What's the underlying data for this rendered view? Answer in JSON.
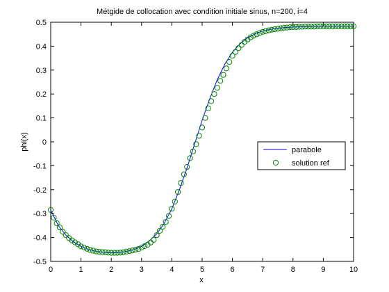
{
  "chart_data": {
    "type": "line",
    "title": "Métgide de collocation avec condition initiale sinus, n=200, i=4",
    "xlabel": "x",
    "ylabel": "phi(x)",
    "xlim": [
      0,
      10
    ],
    "ylim": [
      -0.5,
      0.5
    ],
    "xticks": [
      0,
      1,
      2,
      3,
      4,
      5,
      6,
      7,
      8,
      9,
      10
    ],
    "xtick_labels": [
      "0",
      "1",
      "2",
      "3",
      "4",
      "5",
      "6",
      "7",
      "8",
      "9",
      "10"
    ],
    "yticks": [
      -0.5,
      -0.4,
      -0.3,
      -0.2,
      -0.1,
      0,
      0.1,
      0.2,
      0.3,
      0.4,
      0.5
    ],
    "ytick_labels": [
      "-0.5",
      "-0.4",
      "-0.3",
      "-0.2",
      "-0.1",
      "0",
      "0.1",
      "0.2",
      "0.3",
      "0.4",
      "0.5"
    ],
    "grid": false,
    "legend_placement": "right",
    "series": [
      {
        "name": "parabole",
        "style": "line",
        "color": "#0000ff",
        "x": [
          0,
          0.25,
          0.5,
          0.75,
          1,
          1.25,
          1.5,
          1.75,
          2,
          2.25,
          2.5,
          2.75,
          3,
          3.25,
          3.5,
          3.75,
          4,
          4.25,
          4.5,
          4.75,
          5,
          5.25,
          5.5,
          5.75,
          6,
          6.25,
          6.5,
          6.75,
          7,
          7.25,
          7.5,
          7.75,
          8,
          8.5,
          9,
          9.5,
          10
        ],
        "y": [
          -0.285,
          -0.35,
          -0.39,
          -0.418,
          -0.437,
          -0.45,
          -0.458,
          -0.462,
          -0.464,
          -0.463,
          -0.458,
          -0.45,
          -0.437,
          -0.415,
          -0.385,
          -0.34,
          -0.28,
          -0.2,
          -0.11,
          -0.01,
          0.09,
          0.18,
          0.26,
          0.325,
          0.375,
          0.41,
          0.435,
          0.452,
          0.463,
          0.47,
          0.475,
          0.478,
          0.48,
          0.482,
          0.483,
          0.483,
          0.483
        ]
      },
      {
        "name": "solution ref",
        "style": "markers",
        "marker": "circle",
        "color": "#008000",
        "x": [
          0,
          0.1,
          0.2,
          0.3,
          0.4,
          0.5,
          0.6,
          0.7,
          0.8,
          0.9,
          1,
          1.1,
          1.2,
          1.3,
          1.4,
          1.5,
          1.6,
          1.7,
          1.8,
          1.9,
          2,
          2.1,
          2.2,
          2.3,
          2.4,
          2.5,
          2.6,
          2.7,
          2.8,
          2.9,
          3,
          3.1,
          3.2,
          3.3,
          3.4,
          3.5,
          3.6,
          3.7,
          3.8,
          3.9,
          4,
          4.1,
          4.2,
          4.3,
          4.4,
          4.5,
          4.6,
          4.7,
          4.8,
          4.9,
          5,
          5.1,
          5.2,
          5.3,
          5.4,
          5.5,
          5.6,
          5.7,
          5.8,
          5.9,
          6,
          6.1,
          6.2,
          6.3,
          6.4,
          6.5,
          6.6,
          6.7,
          6.8,
          6.9,
          7,
          7.1,
          7.2,
          7.3,
          7.4,
          7.5,
          7.6,
          7.7,
          7.8,
          7.9,
          8,
          8.1,
          8.2,
          8.3,
          8.4,
          8.5,
          8.6,
          8.7,
          8.8,
          8.9,
          9,
          9.1,
          9.2,
          9.3,
          9.4,
          9.5,
          9.6,
          9.7,
          9.8,
          9.9,
          10
        ],
        "y": [
          -0.285,
          -0.317,
          -0.34,
          -0.358,
          -0.376,
          -0.39,
          -0.402,
          -0.412,
          -0.42,
          -0.428,
          -0.437,
          -0.442,
          -0.447,
          -0.452,
          -0.455,
          -0.458,
          -0.46,
          -0.461,
          -0.462,
          -0.463,
          -0.464,
          -0.464,
          -0.464,
          -0.463,
          -0.462,
          -0.459,
          -0.457,
          -0.454,
          -0.451,
          -0.448,
          -0.442,
          -0.436,
          -0.43,
          -0.421,
          -0.41,
          -0.39,
          -0.372,
          -0.355,
          -0.335,
          -0.31,
          -0.28,
          -0.25,
          -0.21,
          -0.172,
          -0.136,
          -0.105,
          -0.068,
          -0.04,
          -0.01,
          0.025,
          0.06,
          0.1,
          0.14,
          0.17,
          0.2,
          0.226,
          0.255,
          0.28,
          0.307,
          0.334,
          0.36,
          0.376,
          0.392,
          0.405,
          0.418,
          0.428,
          0.437,
          0.444,
          0.45,
          0.455,
          0.46,
          0.463,
          0.466,
          0.469,
          0.471,
          0.473,
          0.475,
          0.477,
          0.478,
          0.479,
          0.48,
          0.48,
          0.481,
          0.481,
          0.482,
          0.482,
          0.482,
          0.482,
          0.483,
          0.483,
          0.483,
          0.483,
          0.483,
          0.483,
          0.483,
          0.483,
          0.483,
          0.483,
          0.483,
          0.483,
          0.483
        ]
      }
    ]
  }
}
